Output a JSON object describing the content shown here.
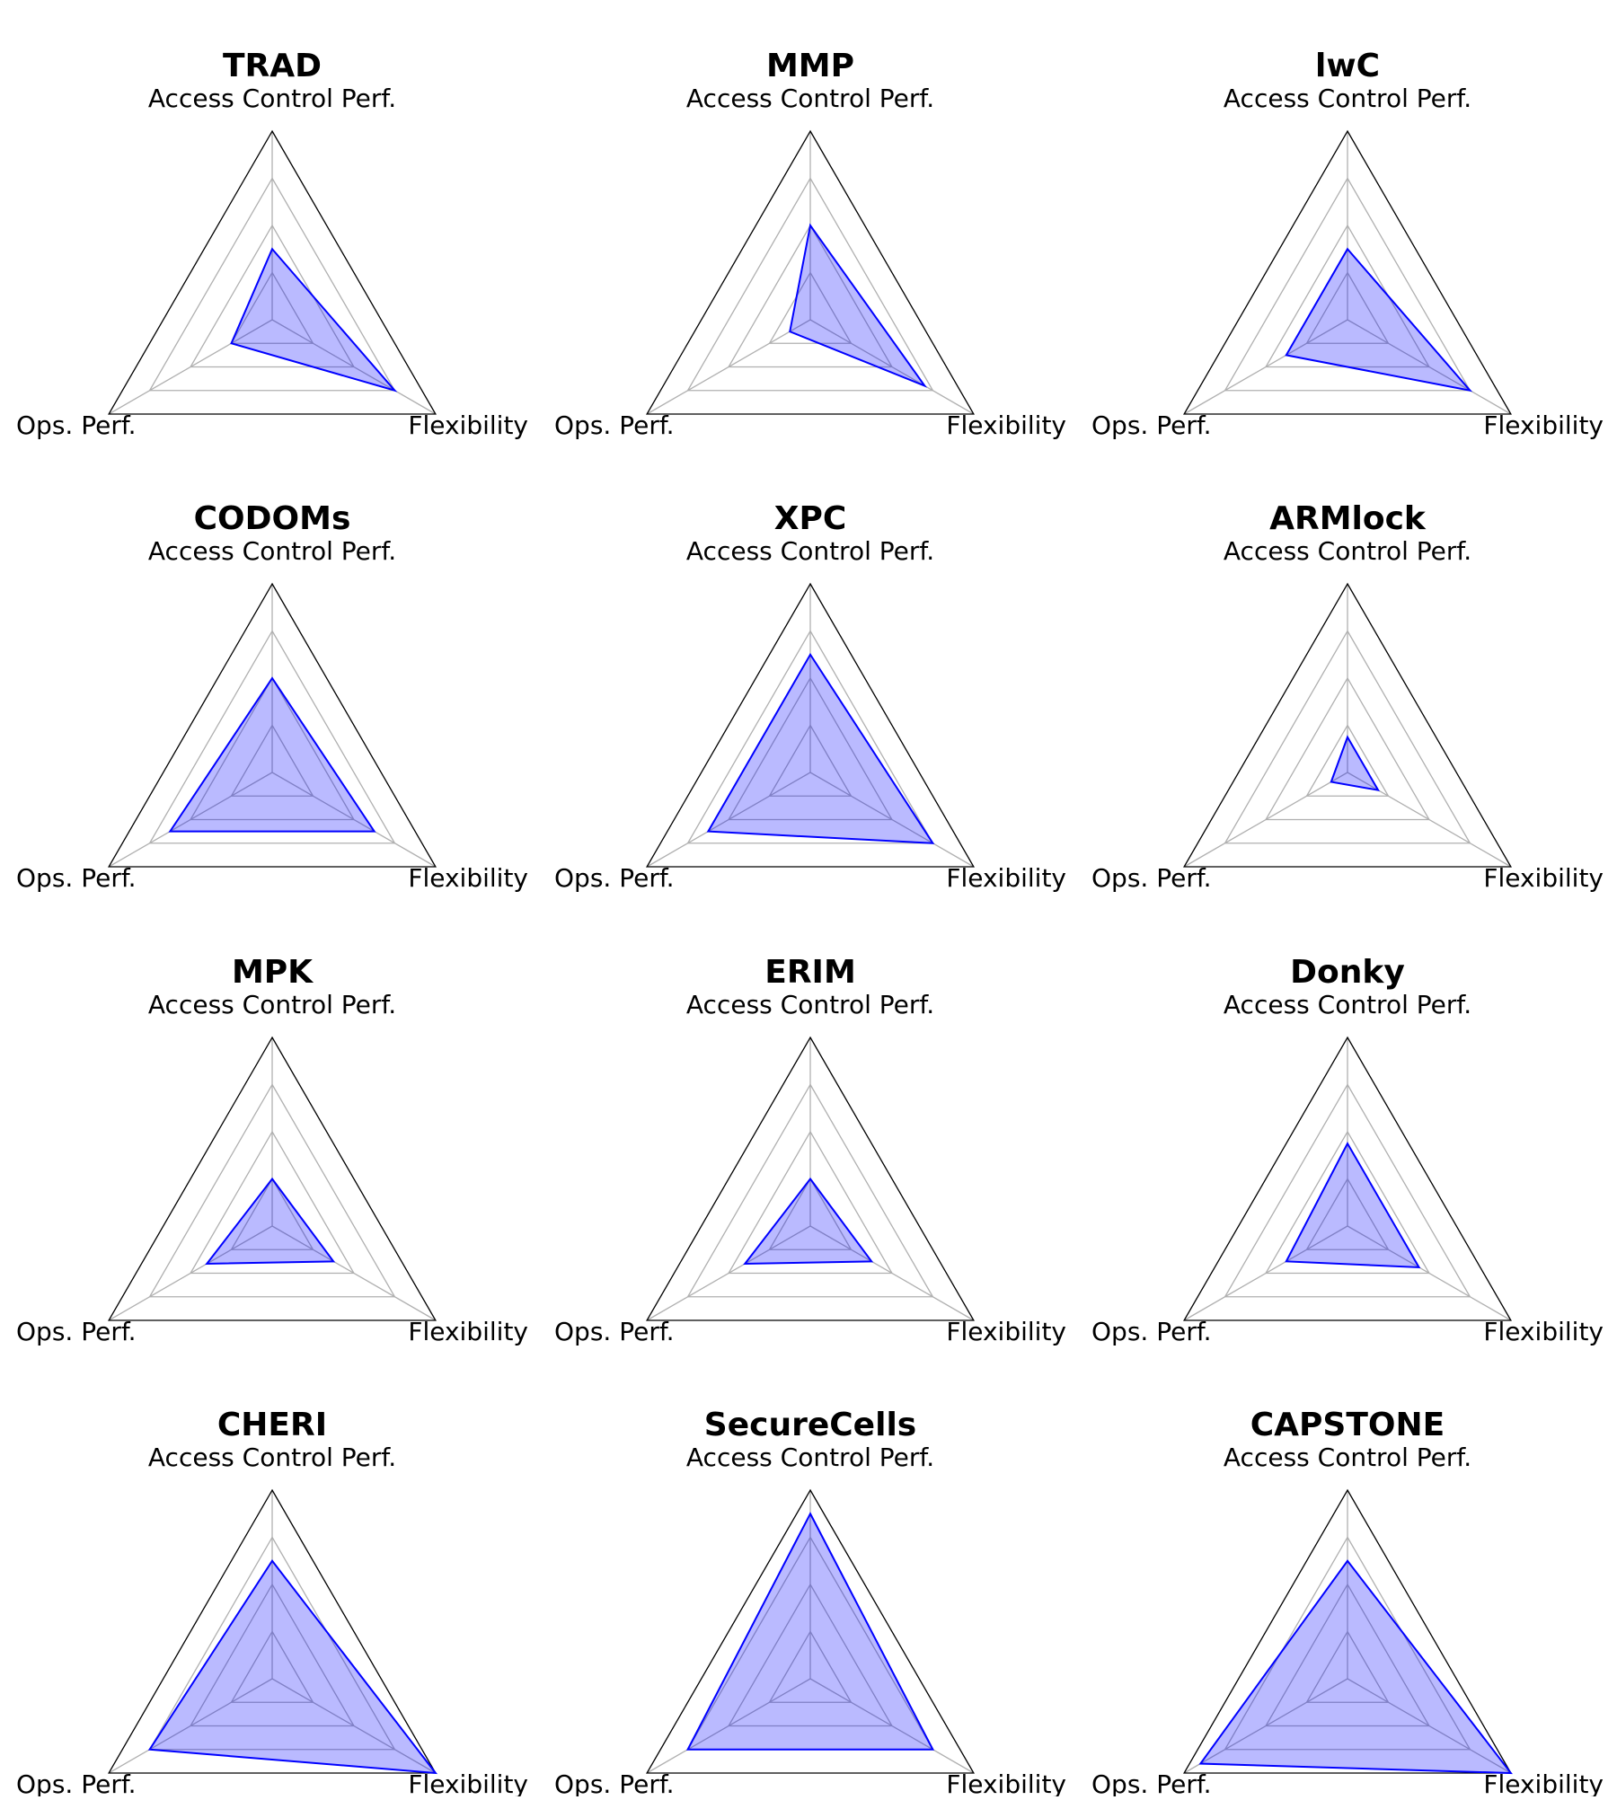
{
  "chart_data": {
    "type": "radar",
    "axes": [
      "Access Control Perf.",
      "Flexibility",
      "Ops. Perf."
    ],
    "rlim": [
      0,
      4
    ],
    "rings": [
      1,
      2,
      3,
      4
    ],
    "colors": {
      "series_line": "#0000ff",
      "series_fill": "#0000ff",
      "grid": "#b0b0b0",
      "frame": "#000000"
    },
    "panels": [
      {
        "title": "TRAD",
        "values": {
          "Access Control Perf.": 1.5,
          "Flexibility": 3.0,
          "Ops. Perf.": 1.0
        }
      },
      {
        "title": "MMP",
        "values": {
          "Access Control Perf.": 2.0,
          "Flexibility": 2.8,
          "Ops. Perf.": 0.5
        }
      },
      {
        "title": "lwC",
        "values": {
          "Access Control Perf.": 1.5,
          "Flexibility": 3.0,
          "Ops. Perf.": 1.5
        }
      },
      {
        "title": "CODOMs",
        "values": {
          "Access Control Perf.": 2.0,
          "Flexibility": 2.5,
          "Ops. Perf.": 2.5
        }
      },
      {
        "title": "XPC",
        "values": {
          "Access Control Perf.": 2.5,
          "Flexibility": 3.0,
          "Ops. Perf.": 2.5
        }
      },
      {
        "title": "ARMlock",
        "values": {
          "Access Control Perf.": 0.75,
          "Flexibility": 0.75,
          "Ops. Perf.": 0.4
        }
      },
      {
        "title": "MPK",
        "values": {
          "Access Control Perf.": 1.0,
          "Flexibility": 1.5,
          "Ops. Perf.": 1.6
        }
      },
      {
        "title": "ERIM",
        "values": {
          "Access Control Perf.": 1.0,
          "Flexibility": 1.5,
          "Ops. Perf.": 1.6
        }
      },
      {
        "title": "Donky",
        "values": {
          "Access Control Perf.": 1.75,
          "Flexibility": 1.75,
          "Ops. Perf.": 1.5
        }
      },
      {
        "title": "CHERI",
        "values": {
          "Access Control Perf.": 2.5,
          "Flexibility": 4.0,
          "Ops. Perf.": 3.0
        }
      },
      {
        "title": "SecureCells",
        "values": {
          "Access Control Perf.": 3.5,
          "Flexibility": 3.0,
          "Ops. Perf.": 3.0
        }
      },
      {
        "title": "CAPSTONE",
        "values": {
          "Access Control Perf.": 2.5,
          "Flexibility": 4.0,
          "Ops. Perf.": 3.6
        }
      }
    ]
  }
}
